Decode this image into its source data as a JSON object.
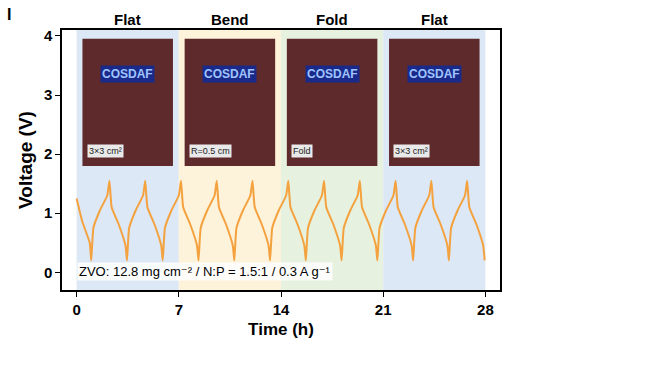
{
  "chart_data": {
    "type": "line",
    "panel": "I",
    "x_label": "Time (h)",
    "y_label": "Voltage (V)",
    "xlim": [
      -1,
      29
    ],
    "xticks": [
      0,
      7,
      14,
      21,
      28
    ],
    "ylim": [
      -0.3,
      4.1
    ],
    "yticks": [
      0,
      1,
      2,
      3,
      4
    ],
    "grid": false,
    "color": "#f4a23f",
    "annotation": "ZVO: 12.8 mg cm⁻² / N:P = 1.5:1 / 0.3 A g⁻¹",
    "photo_text": "COSDAF",
    "stages": [
      {
        "label": "Flat",
        "from": 0,
        "to": 7,
        "color": "#dce8f6",
        "note": "3×3 cm²"
      },
      {
        "label": "Bend",
        "from": 7,
        "to": 14,
        "color": "#fdf2da",
        "note": "R=0.5 cm"
      },
      {
        "label": "Fold",
        "from": 14,
        "to": 21,
        "color": "#e6f2df",
        "note": "Fold"
      },
      {
        "label": "Flat",
        "from": 21,
        "to": 28,
        "color": "#dce8f6",
        "note": "3×3 cm²"
      }
    ],
    "x": [
      0,
      0.4,
      0.9,
      1.0,
      1.15,
      1.6,
      2.1,
      2.25,
      2.4,
      2.9,
      3.35,
      3.45,
      3.6,
      4.05,
      4.55,
      4.7,
      4.85,
      5.35,
      5.8,
      5.9,
      6.05,
      6.5,
      7.0,
      7.15,
      7.3,
      7.8,
      8.25,
      8.35,
      8.5,
      8.95,
      9.45,
      9.6,
      9.75,
      10.25,
      10.7,
      10.8,
      10.95,
      11.4,
      11.9,
      12.05,
      12.2,
      12.7,
      13.15,
      13.25,
      13.4,
      13.85,
      14.35,
      14.5,
      14.65,
      15.15,
      15.6,
      15.7,
      15.85,
      16.3,
      16.8,
      16.95,
      17.1,
      17.6,
      18.05,
      18.15,
      18.3,
      18.75,
      19.25,
      19.4,
      19.55,
      20.05,
      20.5,
      20.6,
      20.75,
      21.2,
      21.7,
      21.85,
      22.0,
      22.5,
      22.95,
      23.05,
      23.2,
      23.65,
      24.15,
      24.3,
      24.45,
      24.95,
      25.4,
      25.5,
      25.65,
      26.1,
      26.6,
      26.75,
      26.9,
      27.4,
      27.85,
      27.95
    ],
    "values": [
      1.25,
      0.85,
      0.5,
      0.2,
      0.75,
      1.05,
      1.3,
      1.55,
      1.1,
      0.8,
      0.45,
      0.2,
      0.75,
      1.05,
      1.3,
      1.55,
      1.1,
      0.8,
      0.45,
      0.2,
      0.75,
      1.05,
      1.3,
      1.55,
      1.1,
      0.8,
      0.45,
      0.2,
      0.75,
      1.05,
      1.3,
      1.55,
      1.1,
      0.8,
      0.45,
      0.2,
      0.75,
      1.05,
      1.3,
      1.55,
      1.1,
      0.8,
      0.45,
      0.2,
      0.75,
      1.05,
      1.3,
      1.55,
      1.1,
      0.8,
      0.45,
      0.2,
      0.75,
      1.05,
      1.3,
      1.55,
      1.1,
      0.8,
      0.45,
      0.2,
      0.75,
      1.05,
      1.3,
      1.55,
      1.1,
      0.8,
      0.45,
      0.2,
      0.75,
      1.05,
      1.3,
      1.55,
      1.1,
      0.8,
      0.45,
      0.2,
      0.75,
      1.05,
      1.3,
      1.55,
      1.1,
      0.8,
      0.45,
      0.2,
      0.75,
      1.05,
      1.3,
      1.55,
      1.1,
      0.8,
      0.45,
      0.2
    ]
  }
}
